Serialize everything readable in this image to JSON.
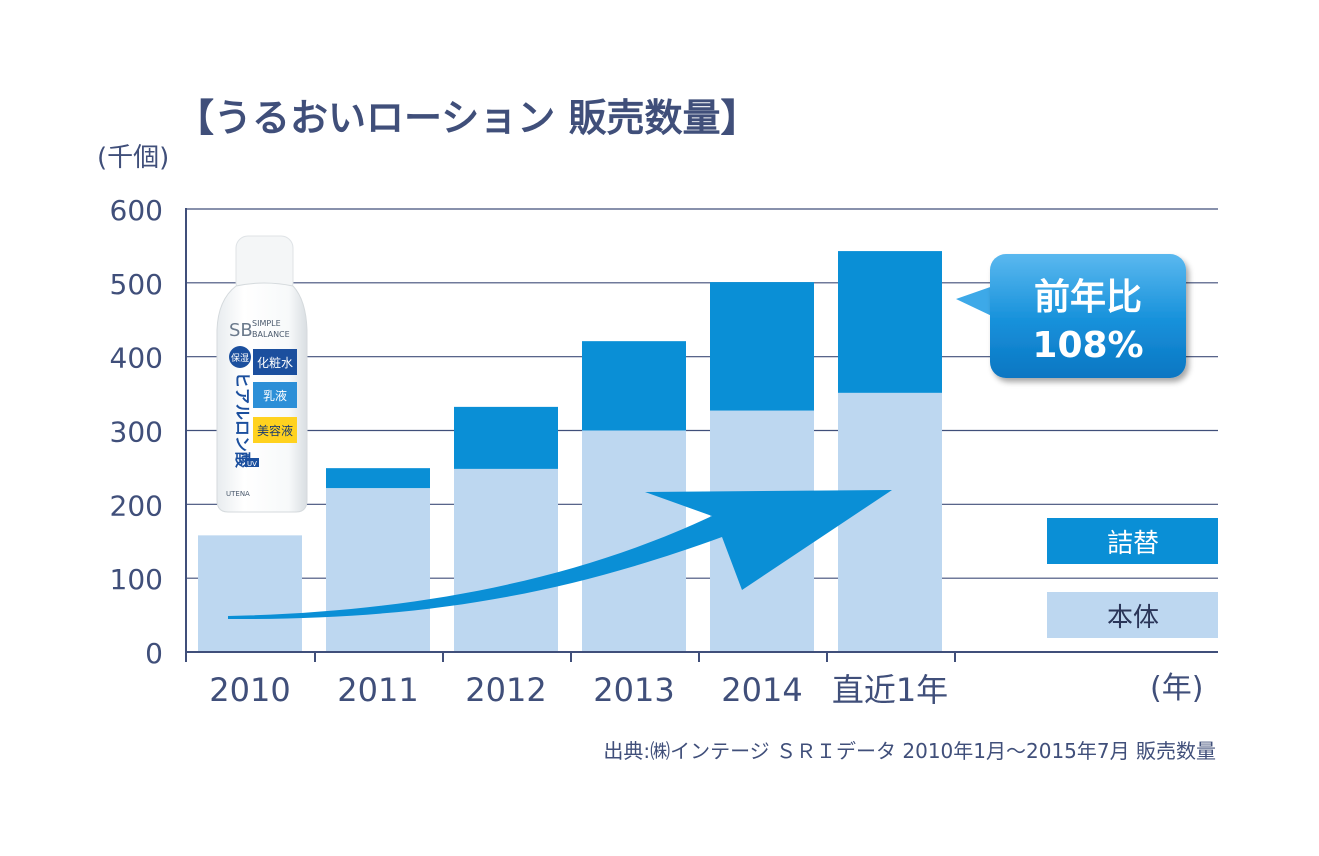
{
  "chart_data": {
    "type": "bar",
    "title": "【うるおいローション 販売数量】",
    "ylabel": "(千個)",
    "xlabel": "(年)",
    "ylim": [
      0,
      600
    ],
    "yticks": [
      0,
      100,
      200,
      300,
      400,
      500,
      600
    ],
    "grid": true,
    "categories": [
      "2010",
      "2011",
      "2012",
      "2013",
      "2014",
      "直近1年"
    ],
    "series": [
      {
        "name": "本体",
        "color": "#bdd7f0",
        "values": [
          158,
          222,
          248,
          300,
          327,
          351
        ]
      },
      {
        "name": "詰替",
        "color": "#0a8fd6",
        "values": [
          0,
          27,
          84,
          121,
          174,
          192
        ]
      }
    ],
    "legend_position": "bottom-right",
    "callout": {
      "line1": "前年比",
      "line2": "108%"
    },
    "source": "出典:㈱インテージ ＳＲＩデータ 2010年1月～2015年7月 販売数量"
  },
  "product": {
    "brand_line1": "SIMPLE",
    "brand_line2": "BALANCE",
    "logo": "SB",
    "badge": "保湿",
    "tag1": "化粧水",
    "tag2": "乳液",
    "tag3": "美容液",
    "name": "ヒアルロン酸",
    "uv": "UV",
    "maker": "UTENA"
  }
}
